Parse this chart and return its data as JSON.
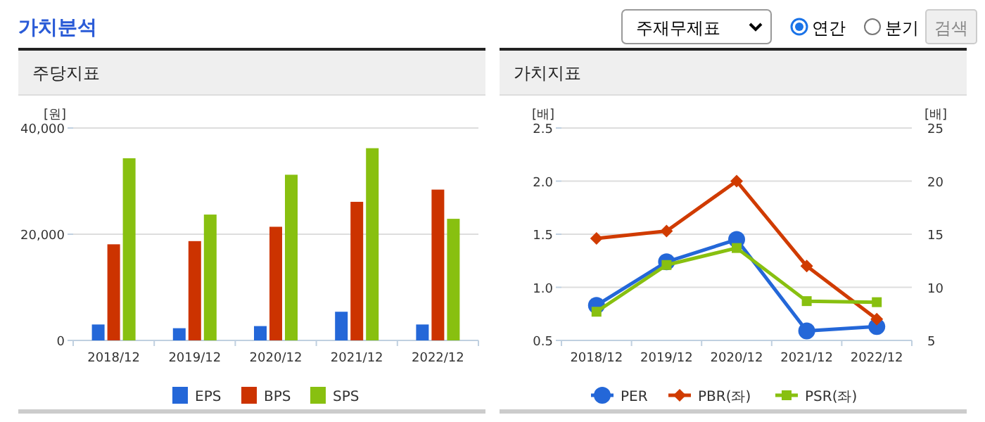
{
  "chart_data": [
    {
      "type": "bar",
      "title": "주당지표",
      "ylabel": "[원]",
      "annotations": [
        "가치분석",
        "주재무제표",
        "연간",
        "분기",
        "검색"
      ],
      "categories": [
        "2018/12",
        "2019/12",
        "2020/12",
        "2021/12",
        "2022/12"
      ],
      "series": [
        {
          "name": "EPS",
          "color": "#2467d8",
          "values": [
            3000,
            2300,
            2700,
            5400,
            3000
          ]
        },
        {
          "name": "BPS",
          "color": "#cc3300",
          "values": [
            18100,
            18700,
            21400,
            26100,
            28400
          ]
        },
        {
          "name": "SPS",
          "color": "#88c010",
          "values": [
            34300,
            23700,
            31200,
            36200,
            22900
          ]
        }
      ],
      "ylim": [
        0,
        40000
      ],
      "yticks": [
        0,
        {
          "value": 20000,
          "label": "20,000"
        },
        {
          "value": 40000,
          "label": "40,000"
        }
      ],
      "grid": "y",
      "legend": "bottom"
    },
    {
      "type": "line",
      "title": "가치지표",
      "ylabel": "[배]",
      "y2label": "[배]",
      "categories": [
        "2018/12",
        "2019/12",
        "2020/12",
        "2021/12",
        "2022/12"
      ],
      "series": [
        {
          "name": "PER",
          "color": "#2467d8",
          "axis": "y2",
          "marker": "circle",
          "values": [
            8.3,
            12.4,
            14.5,
            5.9,
            6.3
          ]
        },
        {
          "name": "PBR(좌)",
          "color": "#d03b00",
          "marker": "diamond",
          "values": [
            1.46,
            1.53,
            2.0,
            1.2,
            0.7
          ]
        },
        {
          "name": "PSR(좌)",
          "color": "#88c010",
          "marker": "square",
          "values": [
            0.77,
            1.21,
            1.37,
            0.87,
            0.86
          ]
        }
      ],
      "ylim": [
        0.5,
        2.5
      ],
      "yticks": [
        0.5,
        {
          "value": 1,
          "label": "1.0"
        },
        1.5,
        {
          "value": 2,
          "label": "2.0"
        },
        2.5
      ],
      "y2lim": [
        5,
        25
      ],
      "y2ticks": [
        5,
        10,
        15,
        20,
        25
      ],
      "grid": "y",
      "legend": "bottom"
    }
  ]
}
